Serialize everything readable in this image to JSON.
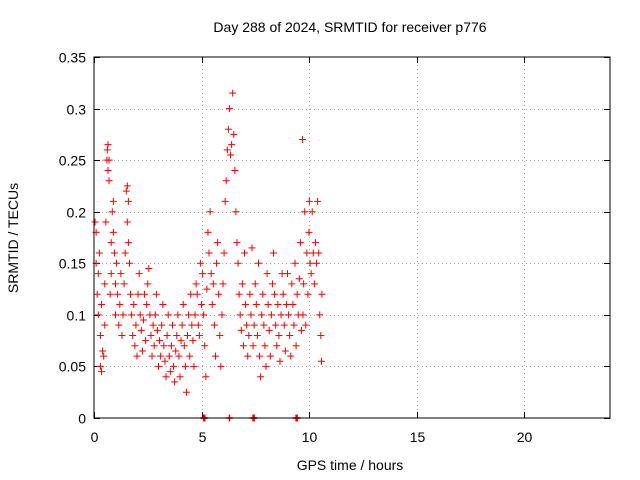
{
  "chart_data": {
    "type": "scatter",
    "title": "Day 288 of 2024, SRMTID for receiver p776",
    "xlabel": "GPS time / hours",
    "ylabel": "SRMTID / TECUs",
    "xlim": [
      0,
      24
    ],
    "ylim": [
      0,
      0.35
    ],
    "x_ticks": [
      0,
      5,
      10,
      15,
      20
    ],
    "x_tick_labels": [
      "0",
      "5",
      "10",
      "15",
      "20"
    ],
    "y_ticks": [
      0,
      0.05,
      0.1,
      0.15,
      0.2,
      0.25,
      0.3,
      0.35
    ],
    "y_tick_labels": [
      "0",
      "0.05",
      "0.1",
      "0.15",
      "0.2",
      "0.25",
      "0.3",
      "0.35"
    ],
    "grid": true,
    "marker": "+",
    "color": "#ff0000",
    "zero_value_times": [
      5.1,
      5.15,
      6.3,
      7.4,
      7.45,
      9.4,
      9.45
    ],
    "points": [
      [
        0.05,
        0.19
      ],
      [
        0.1,
        0.18
      ],
      [
        0.1,
        0.15
      ],
      [
        0.15,
        0.12
      ],
      [
        0.2,
        0.1
      ],
      [
        0.2,
        0.14
      ],
      [
        0.25,
        0.16
      ],
      [
        0.3,
        0.05
      ],
      [
        0.3,
        0.08
      ],
      [
        0.35,
        0.11
      ],
      [
        0.35,
        0.045
      ],
      [
        0.4,
        0.065
      ],
      [
        0.45,
        0.06
      ],
      [
        0.5,
        0.13
      ],
      [
        0.5,
        0.09
      ],
      [
        0.55,
        0.19
      ],
      [
        0.6,
        0.25
      ],
      [
        0.62,
        0.26
      ],
      [
        0.65,
        0.265
      ],
      [
        0.65,
        0.24
      ],
      [
        0.7,
        0.23
      ],
      [
        0.7,
        0.25
      ],
      [
        0.75,
        0.12
      ],
      [
        0.8,
        0.14
      ],
      [
        0.8,
        0.17
      ],
      [
        0.85,
        0.2
      ],
      [
        0.9,
        0.18
      ],
      [
        0.9,
        0.21
      ],
      [
        0.95,
        0.16
      ],
      [
        1.0,
        0.13
      ],
      [
        1.0,
        0.1
      ],
      [
        1.05,
        0.15
      ],
      [
        1.1,
        0.12
      ],
      [
        1.15,
        0.09
      ],
      [
        1.2,
        0.11
      ],
      [
        1.25,
        0.14
      ],
      [
        1.3,
        0.08
      ],
      [
        1.35,
        0.1
      ],
      [
        1.4,
        0.13
      ],
      [
        1.45,
        0.16
      ],
      [
        1.5,
        0.22
      ],
      [
        1.55,
        0.225
      ],
      [
        1.55,
        0.19
      ],
      [
        1.6,
        0.21
      ],
      [
        1.6,
        0.17
      ],
      [
        1.65,
        0.15
      ],
      [
        1.7,
        0.12
      ],
      [
        1.75,
        0.1
      ],
      [
        1.8,
        0.08
      ],
      [
        1.85,
        0.11
      ],
      [
        1.9,
        0.07
      ],
      [
        1.95,
        0.09
      ],
      [
        2.0,
        0.06
      ],
      [
        2.05,
        0.12
      ],
      [
        2.1,
        0.14
      ],
      [
        2.15,
        0.1
      ],
      [
        2.2,
        0.085
      ],
      [
        2.25,
        0.065
      ],
      [
        2.3,
        0.095
      ],
      [
        2.35,
        0.12
      ],
      [
        2.4,
        0.075
      ],
      [
        2.45,
        0.11
      ],
      [
        2.5,
        0.13
      ],
      [
        2.55,
        0.145
      ],
      [
        2.6,
        0.1
      ],
      [
        2.65,
        0.08
      ],
      [
        2.7,
        0.06
      ],
      [
        2.75,
        0.09
      ],
      [
        2.8,
        0.07
      ],
      [
        2.85,
        0.1
      ],
      [
        2.9,
        0.12
      ],
      [
        2.95,
        0.085
      ],
      [
        3.0,
        0.05
      ],
      [
        3.05,
        0.075
      ],
      [
        3.1,
        0.06
      ],
      [
        3.15,
        0.09
      ],
      [
        3.2,
        0.11
      ],
      [
        3.25,
        0.07
      ],
      [
        3.3,
        0.055
      ],
      [
        3.35,
        0.04
      ],
      [
        3.4,
        0.08
      ],
      [
        3.45,
        0.1
      ],
      [
        3.5,
        0.06
      ],
      [
        3.55,
        0.045
      ],
      [
        3.6,
        0.07
      ],
      [
        3.65,
        0.09
      ],
      [
        3.7,
        0.05
      ],
      [
        3.75,
        0.035
      ],
      [
        3.8,
        0.065
      ],
      [
        3.85,
        0.08
      ],
      [
        3.9,
        0.1
      ],
      [
        3.95,
        0.06
      ],
      [
        4.0,
        0.04
      ],
      [
        4.05,
        0.075
      ],
      [
        4.1,
        0.09
      ],
      [
        4.15,
        0.11
      ],
      [
        4.2,
        0.07
      ],
      [
        4.25,
        0.05
      ],
      [
        4.3,
        0.025
      ],
      [
        4.35,
        0.08
      ],
      [
        4.4,
        0.1
      ],
      [
        4.45,
        0.06
      ],
      [
        4.5,
        0.12
      ],
      [
        4.55,
        0.09
      ],
      [
        4.6,
        0.075
      ],
      [
        4.65,
        0.05
      ],
      [
        4.7,
        0.1
      ],
      [
        4.75,
        0.13
      ],
      [
        4.8,
        0.12
      ],
      [
        4.85,
        0.09
      ],
      [
        4.9,
        0.08
      ],
      [
        4.95,
        0.15
      ],
      [
        5.0,
        0.11
      ],
      [
        5.05,
        0.14
      ],
      [
        5.1,
        0.1
      ],
      [
        5.15,
        0.07
      ],
      [
        5.2,
        0.04
      ],
      [
        5.25,
        0.125
      ],
      [
        5.3,
        0.18
      ],
      [
        5.35,
        0.16
      ],
      [
        5.4,
        0.2
      ],
      [
        5.45,
        0.14
      ],
      [
        5.5,
        0.11
      ],
      [
        5.55,
        0.13
      ],
      [
        5.6,
        0.09
      ],
      [
        5.65,
        0.06
      ],
      [
        5.7,
        0.15
      ],
      [
        5.75,
        0.17
      ],
      [
        5.8,
        0.12
      ],
      [
        5.85,
        0.08
      ],
      [
        5.9,
        0.05
      ],
      [
        5.95,
        0.1
      ],
      [
        6.0,
        0.13
      ],
      [
        6.05,
        0.16
      ],
      [
        6.1,
        0.21
      ],
      [
        6.15,
        0.23
      ],
      [
        6.2,
        0.26
      ],
      [
        6.25,
        0.28
      ],
      [
        6.3,
        0.3
      ],
      [
        6.35,
        0.255
      ],
      [
        6.4,
        0.265
      ],
      [
        6.45,
        0.315
      ],
      [
        6.5,
        0.275
      ],
      [
        6.55,
        0.24
      ],
      [
        6.6,
        0.2
      ],
      [
        6.65,
        0.17
      ],
      [
        6.7,
        0.15
      ],
      [
        6.75,
        0.12
      ],
      [
        6.8,
        0.1
      ],
      [
        6.85,
        0.085
      ],
      [
        6.9,
        0.13
      ],
      [
        6.95,
        0.07
      ],
      [
        7.0,
        0.16
      ],
      [
        7.05,
        0.11
      ],
      [
        7.1,
        0.09
      ],
      [
        7.15,
        0.06
      ],
      [
        7.2,
        0.08
      ],
      [
        7.25,
        0.12
      ],
      [
        7.3,
        0.1
      ],
      [
        7.35,
        0.165
      ],
      [
        7.4,
        0.07
      ],
      [
        7.45,
        0.09
      ],
      [
        7.5,
        0.13
      ],
      [
        7.55,
        0.11
      ],
      [
        7.6,
        0.08
      ],
      [
        7.65,
        0.15
      ],
      [
        7.7,
        0.06
      ],
      [
        7.75,
        0.04
      ],
      [
        7.8,
        0.1
      ],
      [
        7.85,
        0.12
      ],
      [
        7.9,
        0.09
      ],
      [
        7.95,
        0.07
      ],
      [
        8.0,
        0.05
      ],
      [
        8.05,
        0.14
      ],
      [
        8.1,
        0.11
      ],
      [
        8.15,
        0.085
      ],
      [
        8.2,
        0.06
      ],
      [
        8.25,
        0.1
      ],
      [
        8.3,
        0.13
      ],
      [
        8.35,
        0.16
      ],
      [
        8.4,
        0.12
      ],
      [
        8.45,
        0.09
      ],
      [
        8.5,
        0.07
      ],
      [
        8.55,
        0.11
      ],
      [
        8.6,
        0.08
      ],
      [
        8.65,
        0.055
      ],
      [
        8.7,
        0.1
      ],
      [
        8.75,
        0.14
      ],
      [
        8.8,
        0.12
      ],
      [
        8.85,
        0.09
      ],
      [
        8.9,
        0.065
      ],
      [
        8.95,
        0.11
      ],
      [
        9.0,
        0.14
      ],
      [
        9.05,
        0.1
      ],
      [
        9.1,
        0.08
      ],
      [
        9.15,
        0.06
      ],
      [
        9.2,
        0.13
      ],
      [
        9.25,
        0.11
      ],
      [
        9.3,
        0.09
      ],
      [
        9.35,
        0.15
      ],
      [
        9.4,
        0.07
      ],
      [
        9.45,
        0.12
      ],
      [
        9.5,
        0.1
      ],
      [
        9.55,
        0.135
      ],
      [
        9.6,
        0.17
      ],
      [
        9.65,
        0.085
      ],
      [
        9.7,
        0.27
      ],
      [
        9.72,
        0.1
      ],
      [
        9.75,
        0.13
      ],
      [
        9.8,
        0.2
      ],
      [
        9.85,
        0.09
      ],
      [
        9.9,
        0.16
      ],
      [
        9.95,
        0.12
      ],
      [
        10.0,
        0.18
      ],
      [
        10.02,
        0.21
      ],
      [
        10.05,
        0.15
      ],
      [
        10.1,
        0.14
      ],
      [
        10.15,
        0.2
      ],
      [
        10.2,
        0.16
      ],
      [
        10.25,
        0.13
      ],
      [
        10.3,
        0.17
      ],
      [
        10.35,
        0.15
      ],
      [
        10.4,
        0.21
      ],
      [
        10.45,
        0.16
      ],
      [
        10.5,
        0.1
      ],
      [
        10.55,
        0.08
      ],
      [
        10.58,
        0.055
      ],
      [
        10.6,
        0.12
      ]
    ]
  }
}
